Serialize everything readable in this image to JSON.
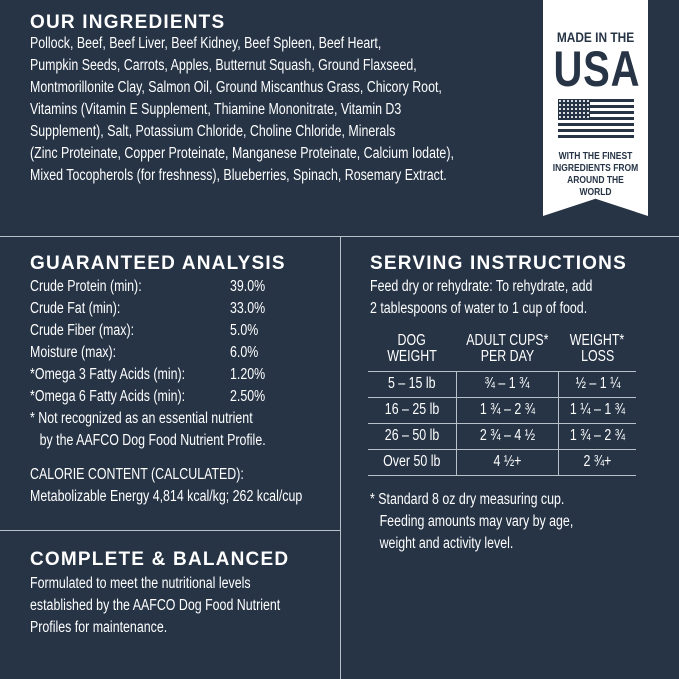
{
  "ingredients": {
    "title": "OUR INGREDIENTS",
    "lines": [
      "Pollock, Beef, Beef Liver, Beef Kidney, Beef Spleen, Beef Heart,",
      "Pumpkin Seeds, Carrots, Apples, Butternut Squash, Ground Flaxseed,",
      "Montmorillonite Clay, Salmon Oil, Ground Miscanthus Grass, Chicory Root,",
      "Vitamins (Vitamin E Supplement, Thiamine Mononitrate, Vitamin D3",
      "Supplement), Salt, Potassium Chloride, Choline Chloride, Minerals",
      "(Zinc Proteinate, Copper Proteinate, Manganese Proteinate, Calcium Iodate),",
      "Mixed Tocopherols (for freshness), Blueberries, Spinach, Rosemary Extract."
    ]
  },
  "badge": {
    "top": "MADE IN THE",
    "big": "USA",
    "l1": "WITH THE FINEST",
    "l2": "INGREDIENTS FROM",
    "l3": "AROUND THE WORLD",
    "icon": "us-flag-icon"
  },
  "analysis": {
    "title": "GUARANTEED ANALYSIS",
    "rows": [
      {
        "label": "Crude Protein (min):",
        "value": "39.0%"
      },
      {
        "label": "Crude Fat (min):",
        "value": "33.0%"
      },
      {
        "label": "Crude Fiber (max):",
        "value": "5.0%"
      },
      {
        "label": "Moisture (max):",
        "value": "6.0%"
      },
      {
        "label": "*Omega 3 Fatty Acids (min):",
        "value": "1.20%"
      },
      {
        "label": "*Omega 6 Fatty Acids (min):",
        "value": "2.50%"
      }
    ],
    "note1": "* Not recognized as an essential nutrient",
    "note2": "by the AAFCO Dog Food Nutrient Profile.",
    "cal_title": "CALORIE CONTENT (CALCULATED):",
    "cal_value": "Metabolizable Energy 4,814 kcal/kg; 262 kcal/cup"
  },
  "balanced": {
    "title": "COMPLETE & BALANCED",
    "lines": [
      "Formulated to meet the nutritional levels",
      "established by the AAFCO Dog Food Nutrient",
      "Profiles for maintenance."
    ]
  },
  "serving": {
    "title": "SERVING INSTRUCTIONS",
    "intro1": "Feed dry or rehydrate: To rehydrate, add",
    "intro2": "2 tablespoons of water to 1 cup of food.",
    "headers": [
      [
        "DOG",
        "WEIGHT"
      ],
      [
        "ADULT CUPS*",
        "PER DAY"
      ],
      [
        "WEIGHT*",
        "LOSS"
      ]
    ],
    "rows": [
      [
        "5 – 15 lb",
        "¾ – 1 ¾",
        "½ – 1 ¼"
      ],
      [
        "16 – 25 lb",
        "1 ¾ – 2 ¾",
        "1 ¼ – 1 ¾"
      ],
      [
        "26 – 50 lb",
        "2 ¾ – 4 ½",
        "1 ¾ – 2 ¾"
      ],
      [
        "Over 50 lb",
        "4 ½+",
        "2 ¾+"
      ]
    ],
    "note1": "* Standard 8 oz dry measuring cup.",
    "note2": "Feeding amounts may vary by age,",
    "note3": "weight and activity level."
  }
}
